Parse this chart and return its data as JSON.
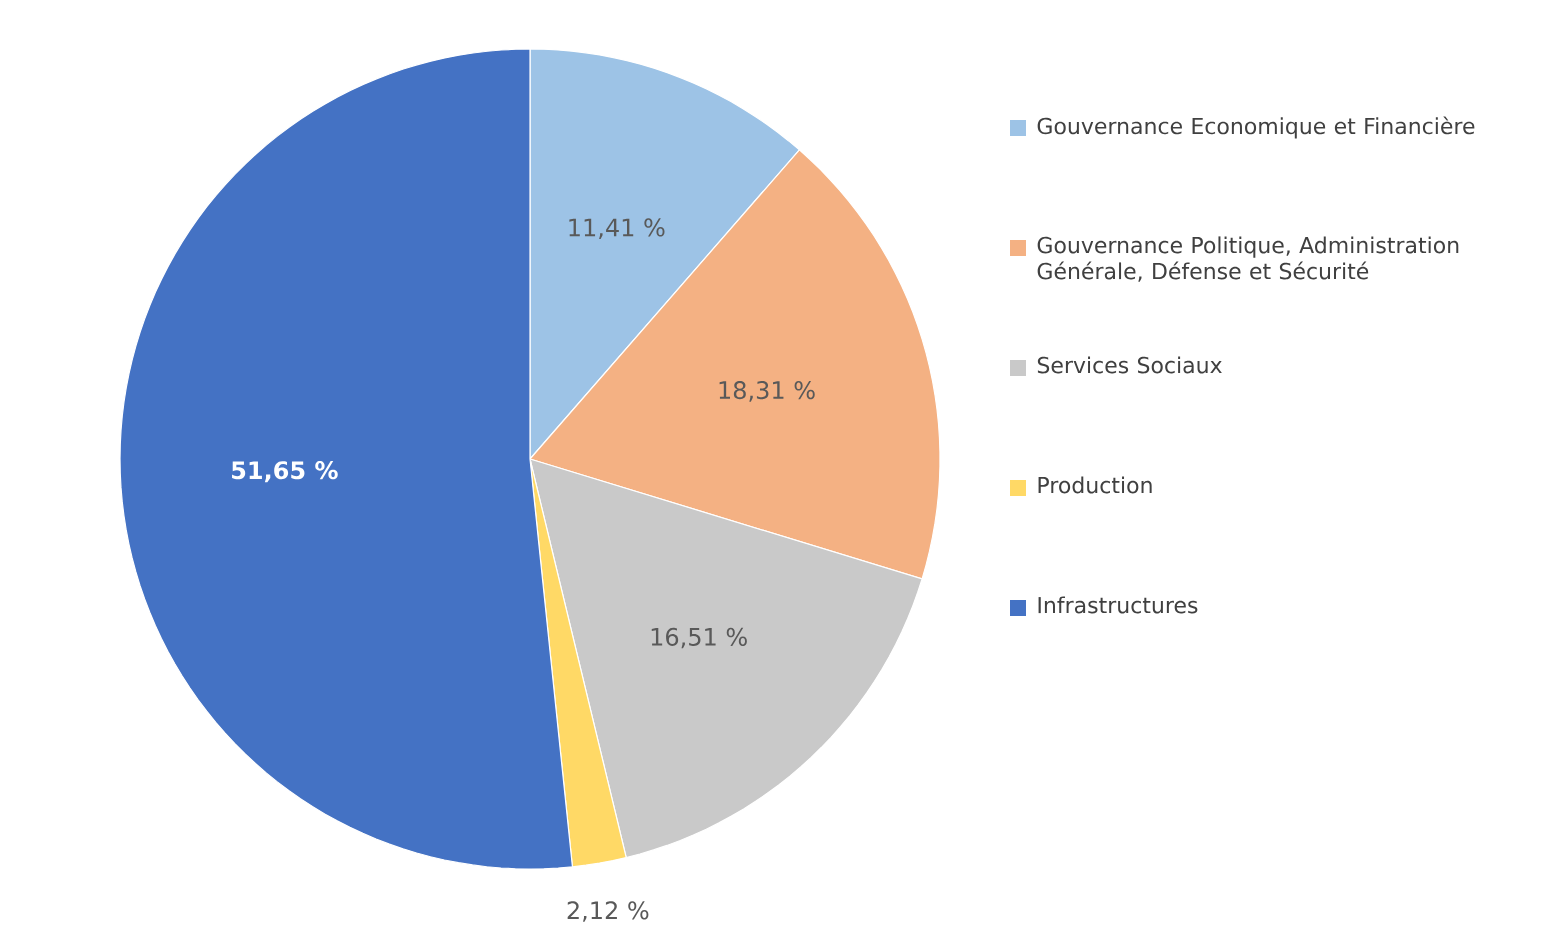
{
  "chart_data": {
    "type": "pie",
    "categories": [
      "Gouvernance Economique et Financière",
      "Gouvernance Politique, Administration Générale, Défense et Sécurité",
      "Services Sociaux",
      "Production",
      "Infrastructures"
    ],
    "values": [
      11.41,
      18.31,
      16.51,
      2.12,
      51.65
    ],
    "colors": [
      "#9dc3e6",
      "#f4b183",
      "#c9c9c9",
      "#ffd966",
      "#4472c4"
    ],
    "value_labels": [
      "11,41 %",
      "18,31 %",
      "16,51 %",
      "2,12 %",
      "51,65 %"
    ],
    "legend": "right"
  }
}
